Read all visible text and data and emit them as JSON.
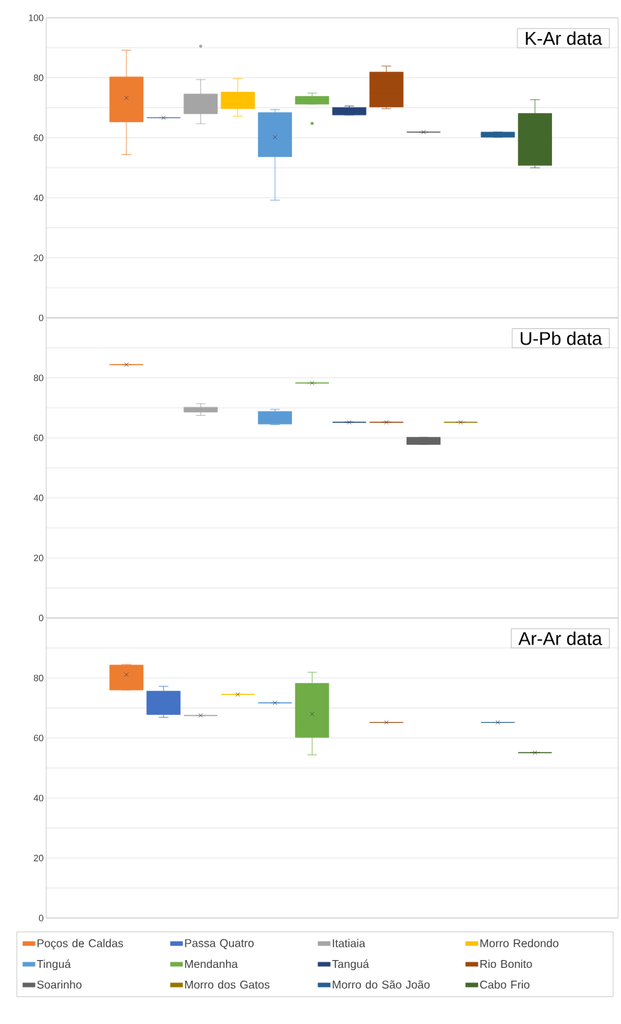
{
  "chart_data": [
    {
      "type": "box",
      "title": "K-Ar data",
      "categories": [
        null
      ],
      "ylim": [
        0,
        100
      ],
      "grid": "y",
      "tick_labels": "y",
      "yticks": [
        0,
        {
          "value": 10,
          "label": null
        },
        20,
        {
          "value": 30,
          "label": null
        },
        40,
        {
          "value": 50,
          "label": null
        },
        60,
        {
          "value": 70,
          "label": null
        },
        80,
        {
          "value": 90,
          "label": null
        },
        100
      ],
      "series": [
        {
          "color": "#ed7d31",
          "boxes": [
            {
              "low": 54.4,
              "q1": 65.3,
              "median": 75,
              "q3": 80.3,
              "high": 89.2,
              "mean": 73.3
            }
          ]
        },
        {
          "color": "#4472c4",
          "boxes": [
            {
              "low": 66.7,
              "q1": 66.7,
              "median": 66.7,
              "q3": 66.7,
              "high": 66.7,
              "mean": 66.7
            }
          ]
        },
        {
          "color": "#a5a5a5",
          "boxes": [
            {
              "low": 64.7,
              "q1": 68.0,
              "median": 71.5,
              "q3": 74.6,
              "high": 79.4,
              "outliers": [
                90.5
              ]
            }
          ]
        },
        {
          "color": "#ffc000",
          "boxes": [
            {
              "low": 67.2,
              "q1": 69.7,
              "median": 72.5,
              "q3": 75.2,
              "high": 79.7
            }
          ]
        },
        {
          "color": "#5b9bd5",
          "boxes": [
            {
              "low": 39.2,
              "q1": 53.7,
              "median": 60,
              "q3": 68.4,
              "high": 69.4,
              "mean": 60.2
            }
          ]
        },
        {
          "color": "#70ad47",
          "boxes": [
            {
              "low": 71.2,
              "q1": 71.2,
              "median": 72.5,
              "q3": 73.8,
              "high": 74.9,
              "outliers": [
                64.8
              ]
            }
          ]
        },
        {
          "color": "#264478",
          "boxes": [
            {
              "low": 67.6,
              "q1": 67.6,
              "median": 69,
              "q3": 70.1,
              "high": 70.6
            }
          ]
        },
        {
          "color": "#9e480e",
          "boxes": [
            {
              "low": 69.7,
              "q1": 70.3,
              "median": 75,
              "q3": 81.9,
              "high": 83.9
            }
          ]
        },
        {
          "color": "#636363",
          "boxes": [
            {
              "low": 61.9,
              "q1": 61.9,
              "median": 61.9,
              "q3": 61.9,
              "high": 61.9,
              "mean": 61.9
            }
          ]
        },
        {
          "color": "#997300",
          "boxes": [
            null
          ]
        },
        {
          "color": "#255e91",
          "boxes": [
            {
              "low": 60.2,
              "q1": 60.2,
              "median": 61,
              "q3": 61.9,
              "high": 61.9
            }
          ]
        },
        {
          "color": "#43682b",
          "boxes": [
            {
              "low": 50.0,
              "q1": 50.8,
              "median": 58,
              "q3": 68.1,
              "high": 72.7
            }
          ]
        }
      ]
    },
    {
      "type": "box",
      "title": "U-Pb data",
      "categories": [
        null
      ],
      "ylim": [
        0,
        100
      ],
      "grid": "y",
      "tick_labels": "y",
      "yticks": [
        0,
        {
          "value": 10,
          "label": null
        },
        20,
        {
          "value": 30,
          "label": null
        },
        40,
        {
          "value": 50,
          "label": null
        },
        60,
        {
          "value": 70,
          "label": null
        },
        80,
        {
          "value": 90,
          "label": null
        }
      ],
      "series": [
        {
          "color": "#ed7d31",
          "boxes": [
            {
              "low": 84.4,
              "q1": 84.4,
              "median": 84.4,
              "q3": 84.4,
              "high": 84.4,
              "mean": 84.4
            }
          ]
        },
        {
          "color": "#4472c4",
          "boxes": [
            null
          ]
        },
        {
          "color": "#a5a5a5",
          "boxes": [
            {
              "low": 67.5,
              "q1": 68.6,
              "median": 69.5,
              "q3": 70.2,
              "high": 71.4
            }
          ]
        },
        {
          "color": "#ffc000",
          "boxes": [
            null
          ]
        },
        {
          "color": "#5b9bd5",
          "boxes": [
            {
              "low": 64.4,
              "q1": 64.6,
              "median": 66,
              "q3": 68.8,
              "high": 69.5
            }
          ]
        },
        {
          "color": "#70ad47",
          "boxes": [
            {
              "low": 78.3,
              "q1": 78.3,
              "median": 78.3,
              "q3": 78.3,
              "high": 78.3,
              "mean": 78.3
            }
          ]
        },
        {
          "color": "#264478",
          "boxes": [
            {
              "low": 65.2,
              "q1": 65.2,
              "median": 65.2,
              "q3": 65.2,
              "high": 65.2,
              "mean": 65.2
            }
          ]
        },
        {
          "color": "#9e480e",
          "boxes": [
            {
              "low": 65.2,
              "q1": 65.2,
              "median": 65.2,
              "q3": 65.2,
              "high": 65.2,
              "mean": 65.2
            }
          ]
        },
        {
          "color": "#636363",
          "boxes": [
            {
              "low": 57.8,
              "q1": 57.8,
              "median": 58.5,
              "q3": 60.2,
              "high": 60.2
            }
          ]
        },
        {
          "color": "#997300",
          "boxes": [
            {
              "low": 65.2,
              "q1": 65.2,
              "median": 65.2,
              "q3": 65.2,
              "high": 65.2,
              "mean": 65.2
            }
          ]
        },
        {
          "color": "#255e91",
          "boxes": [
            null
          ]
        },
        {
          "color": "#43682b",
          "boxes": [
            null
          ]
        }
      ]
    },
    {
      "type": "box",
      "title": "Ar-Ar data",
      "categories": [
        null
      ],
      "ylim": [
        0,
        100
      ],
      "grid": "y",
      "tick_labels": "y",
      "legend": "bottom",
      "yticks": [
        0,
        {
          "value": 10,
          "label": null
        },
        20,
        {
          "value": 30,
          "label": null
        },
        40,
        {
          "value": 50,
          "label": null
        },
        60,
        {
          "value": 70,
          "label": null
        },
        80,
        {
          "value": 90,
          "label": null
        }
      ],
      "series": [
        {
          "name": "Poços de Caldas",
          "color": "#ed7d31",
          "boxes": [
            {
              "low": 76.0,
              "q1": 76.0,
              "median": 83.3,
              "q3": 84.3,
              "high": 84.5,
              "mean": 81.1
            }
          ]
        },
        {
          "name": "Passa Quatro",
          "color": "#4472c4",
          "boxes": [
            {
              "low": 66.9,
              "q1": 67.8,
              "median": 70.8,
              "q3": 75.6,
              "high": 77.2
            }
          ]
        },
        {
          "name": "Itatiaia",
          "color": "#a5a5a5",
          "boxes": [
            {
              "low": 67.5,
              "q1": 67.5,
              "median": 67.5,
              "q3": 67.5,
              "high": 67.5,
              "mean": 67.5
            }
          ]
        },
        {
          "name": "Morro Redondo",
          "color": "#ffc000",
          "boxes": [
            {
              "low": 74.5,
              "q1": 74.5,
              "median": 74.5,
              "q3": 74.5,
              "high": 74.5,
              "mean": 74.5
            }
          ]
        },
        {
          "name": "Tinguá",
          "color": "#5b9bd5",
          "boxes": [
            {
              "low": 71.7,
              "q1": 71.7,
              "median": 71.7,
              "q3": 71.7,
              "high": 71.7,
              "mean": 71.7
            }
          ]
        },
        {
          "name": "Mendanha",
          "color": "#70ad47",
          "boxes": [
            {
              "low": 54.4,
              "q1": 60.2,
              "median": 65.3,
              "q3": 78.2,
              "high": 81.9,
              "mean": 68
            }
          ]
        },
        {
          "name": "Tanguá",
          "color": "#264478",
          "boxes": [
            null
          ]
        },
        {
          "name": "Rio Bonito",
          "color": "#9e480e",
          "boxes": [
            {
              "low": 65.2,
              "q1": 65.2,
              "median": 65.2,
              "q3": 65.2,
              "high": 65.2,
              "mean": 65.2
            }
          ]
        },
        {
          "name": "Soarinho",
          "color": "#636363",
          "boxes": [
            null
          ]
        },
        {
          "name": "Morro dos Gatos",
          "color": "#997300",
          "boxes": [
            null
          ]
        },
        {
          "name": "Morro do São João",
          "color": "#255e91",
          "boxes": [
            {
              "low": 65.2,
              "q1": 65.2,
              "median": 65.2,
              "q3": 65.2,
              "high": 65.2,
              "mean": 65.2
            }
          ]
        },
        {
          "name": "Cabo Frio",
          "color": "#43682b",
          "boxes": [
            {
              "low": 55.1,
              "q1": 55.1,
              "median": 55.1,
              "q3": 55.1,
              "high": 55.1,
              "mean": 55.1
            }
          ]
        }
      ]
    }
  ]
}
